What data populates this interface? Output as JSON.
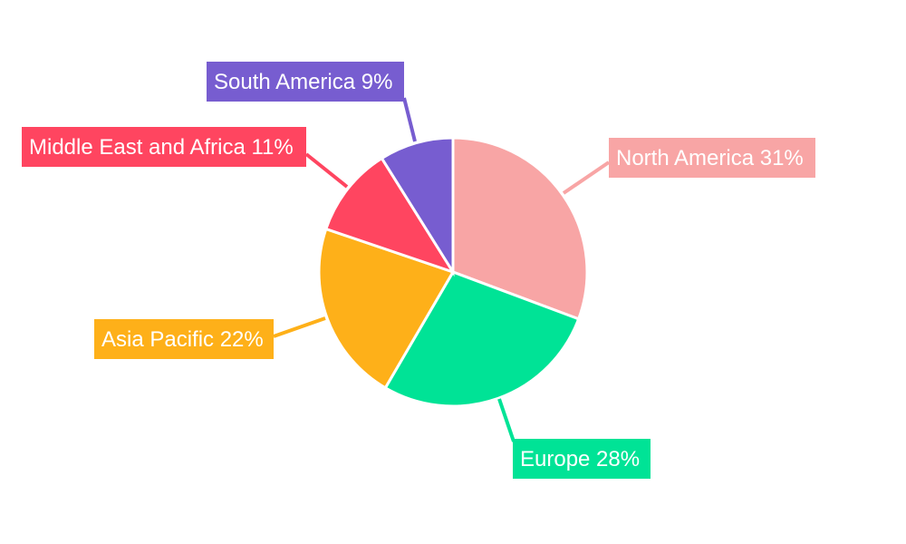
{
  "chart_data": {
    "type": "pie",
    "title": "",
    "slices": [
      {
        "label": "North America",
        "value": 31,
        "display": "North America 31%",
        "color": "#F8A5A5"
      },
      {
        "label": "Europe",
        "value": 28,
        "display": "Europe 28%",
        "color": "#00E396"
      },
      {
        "label": "Asia Pacific",
        "value": 22,
        "display": "Asia Pacific 22%",
        "color": "#FEB019"
      },
      {
        "label": "Middle East and Africa",
        "value": 11,
        "display": "Middle East and Africa 11%",
        "color": "#FF4560"
      },
      {
        "label": "South America",
        "value": 9,
        "display": "South America 9%",
        "color": "#775DD0"
      }
    ],
    "start_angle_deg": 0,
    "direction": "clockwise",
    "legend": "none"
  }
}
